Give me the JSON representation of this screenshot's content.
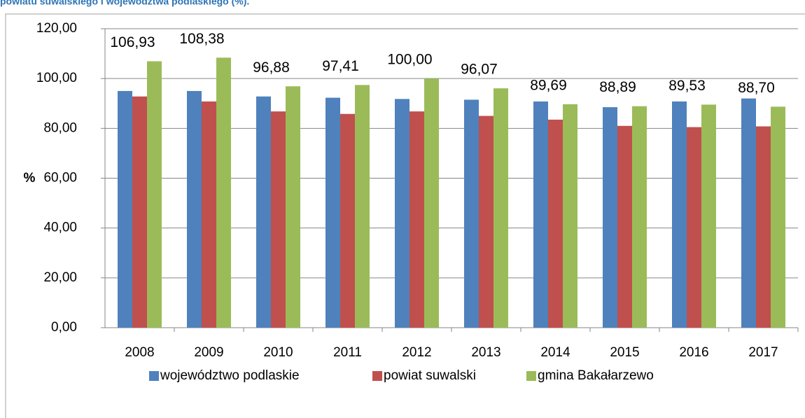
{
  "chart_data": {
    "type": "bar",
    "title": "powiatu suwalskiego i województwa podlaskiego (%).",
    "ylabel": "%",
    "categories": [
      "2008",
      "2009",
      "2010",
      "2011",
      "2012",
      "2013",
      "2014",
      "2015",
      "2016",
      "2017"
    ],
    "series": [
      {
        "name": "województwo podlaskie",
        "color": "#4f81bd",
        "values": [
          95.0,
          95.0,
          92.8,
          92.3,
          91.8,
          91.5,
          90.8,
          88.5,
          90.8,
          92.0
        ]
      },
      {
        "name": "powiat suwalski",
        "color": "#c0504d",
        "values": [
          92.8,
          90.8,
          86.8,
          85.8,
          86.8,
          85.0,
          83.5,
          81.0,
          80.5,
          80.8
        ]
      },
      {
        "name": "gmina Bakałarzewo",
        "color": "#9bbb59",
        "values": [
          106.93,
          108.38,
          96.88,
          97.41,
          100.0,
          96.07,
          89.69,
          88.89,
          89.53,
          88.7
        ],
        "value_labels": [
          "106,93",
          "108,38",
          "96,88",
          "97,41",
          "100,00",
          "96,07",
          "89,69",
          "88,89",
          "89,53",
          "88,70"
        ]
      }
    ],
    "ylim": [
      0,
      120
    ],
    "yticks": [
      {
        "value": 0,
        "label": "0,00"
      },
      {
        "value": 20,
        "label": "20,00"
      },
      {
        "value": 40,
        "label": "40,00"
      },
      {
        "value": 60,
        "label": "60,00"
      },
      {
        "value": 80,
        "label": "80,00"
      },
      {
        "value": 100,
        "label": "100,00"
      },
      {
        "value": 120,
        "label": "120,00"
      }
    ],
    "grid": true,
    "legend": "bottom"
  }
}
